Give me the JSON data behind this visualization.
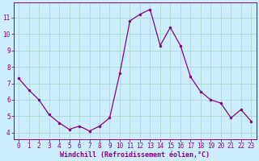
{
  "x": [
    0,
    1,
    2,
    3,
    4,
    5,
    6,
    7,
    8,
    9,
    10,
    11,
    12,
    13,
    14,
    15,
    16,
    17,
    18,
    19,
    20,
    21,
    22,
    23
  ],
  "y": [
    7.3,
    6.6,
    6.0,
    5.1,
    4.6,
    4.2,
    4.4,
    4.1,
    4.4,
    4.9,
    7.6,
    10.8,
    11.2,
    11.5,
    9.3,
    10.4,
    9.3,
    7.4,
    6.5,
    6.0,
    5.8,
    4.9,
    5.4,
    4.7
  ],
  "line_color": "#880088",
  "marker": "o",
  "marker_size": 2.0,
  "bg_color": "#cceeff",
  "grid_color": "#aaddcc",
  "xlabel": "Windchill (Refroidissement éolien,°C)",
  "xlabel_color": "#880088",
  "tick_color": "#880088",
  "spine_color": "#880088",
  "xlim": [
    -0.5,
    23.5
  ],
  "ylim": [
    3.6,
    11.9
  ],
  "yticks": [
    4,
    5,
    6,
    7,
    8,
    9,
    10,
    11
  ],
  "xticks": [
    0,
    1,
    2,
    3,
    4,
    5,
    6,
    7,
    8,
    9,
    10,
    11,
    12,
    13,
    14,
    15,
    16,
    17,
    18,
    19,
    20,
    21,
    22,
    23
  ],
  "xlabel_fontsize": 6.0,
  "tick_fontsize": 5.5,
  "linewidth": 0.9
}
